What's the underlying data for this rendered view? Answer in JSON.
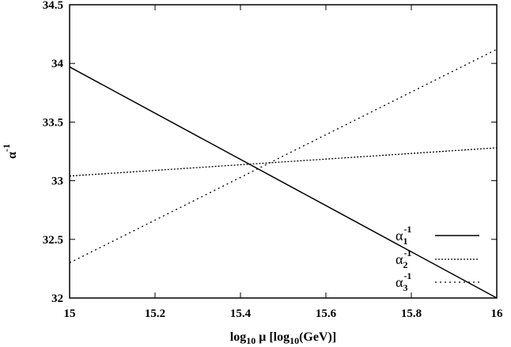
{
  "chart_data": {
    "type": "line",
    "title": "",
    "xlabel": {
      "base": "log",
      "sub": "10",
      "rest": " μ [log",
      "sub2": "10",
      "rest2": "(GeV)]"
    },
    "ylabel": {
      "base": "α",
      "sup": "-1"
    },
    "xlim": [
      15,
      16
    ],
    "ylim": [
      32,
      34.5
    ],
    "xticks": [
      "15",
      "15.2",
      "15.4",
      "15.6",
      "15.8",
      "16"
    ],
    "yticks": [
      "32",
      "32.5",
      "33",
      "33.5",
      "34",
      "34.5"
    ],
    "grid": false,
    "legend_position": "bottom-right",
    "series": [
      {
        "key": "alpha1",
        "legend": {
          "base": "α",
          "sub": "1",
          "sup": "-1"
        },
        "style": "solid",
        "x": [
          15,
          16
        ],
        "y": [
          33.97,
          32.0
        ]
      },
      {
        "key": "alpha2",
        "legend": {
          "base": "α",
          "sub": "2",
          "sup": "-1"
        },
        "style": "dense-dotted",
        "x": [
          15,
          16
        ],
        "y": [
          33.04,
          33.28
        ]
      },
      {
        "key": "alpha3",
        "legend": {
          "base": "α",
          "sub": "3",
          "sup": "-1"
        },
        "style": "dotted",
        "x": [
          15,
          16
        ],
        "y": [
          32.3,
          34.12
        ]
      }
    ]
  }
}
